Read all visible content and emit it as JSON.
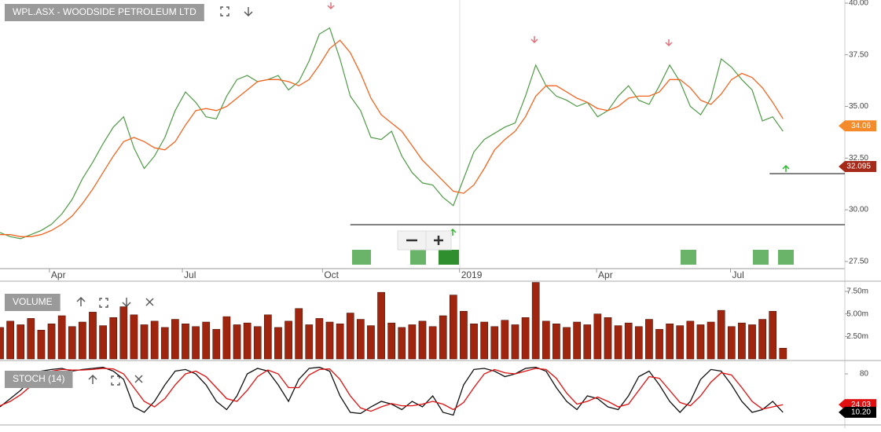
{
  "chart_data": [
    {
      "type": "line",
      "title": "WPL.ASX - WOODSIDE PETROLEUM LTD",
      "x": [
        0,
        1,
        2,
        3,
        4,
        5,
        6,
        7,
        8,
        9,
        10,
        11,
        12,
        13,
        14,
        15,
        16,
        17,
        18,
        19,
        20,
        21,
        22,
        23,
        24,
        25,
        26,
        27,
        28,
        29,
        30,
        31,
        32,
        33,
        34,
        35,
        36,
        37,
        38,
        39,
        40,
        41,
        42,
        43,
        44,
        45,
        46,
        47,
        48,
        49,
        50,
        51,
        52,
        53,
        54,
        55,
        56,
        57,
        58,
        59,
        60,
        61,
        62,
        63,
        64,
        65,
        66,
        67,
        68,
        69,
        70,
        71,
        72,
        73,
        74,
        75,
        76
      ],
      "series": [
        {
          "color": "#4f9a46",
          "values": [
            28.9,
            28.7,
            28.6,
            28.8,
            29.0,
            29.3,
            29.8,
            30.5,
            31.5,
            32.3,
            33.2,
            34.0,
            34.5,
            33.0,
            32.0,
            32.6,
            33.5,
            34.8,
            35.7,
            35.2,
            34.5,
            34.4,
            35.5,
            36.3,
            36.5,
            36.2,
            36.3,
            36.5,
            35.8,
            36.2,
            37.2,
            38.5,
            38.8,
            37.3,
            35.5,
            34.8,
            33.5,
            33.4,
            33.8,
            32.6,
            31.8,
            31.3,
            31.2,
            30.6,
            30.2,
            31.5,
            32.8,
            33.4,
            33.7,
            34.0,
            34.2,
            35.5,
            37.0,
            36.0,
            35.5,
            35.3,
            35.0,
            35.2,
            34.5,
            34.8,
            35.5,
            36.0,
            35.3,
            35.1,
            36.0,
            37.0,
            36.2,
            35.0,
            34.6,
            35.4,
            37.3,
            36.9,
            36.3,
            35.8,
            34.3,
            34.5,
            33.8
          ]
        },
        {
          "color": "#f26522",
          "values": [
            28.8,
            28.8,
            28.7,
            28.7,
            28.8,
            29.0,
            29.3,
            29.7,
            30.3,
            31.0,
            31.8,
            32.6,
            33.3,
            33.5,
            33.3,
            33.0,
            32.9,
            33.3,
            34.1,
            34.8,
            34.9,
            34.8,
            35.0,
            35.4,
            35.8,
            36.2,
            36.3,
            36.3,
            36.2,
            36.0,
            36.3,
            37.0,
            37.8,
            38.2,
            37.6,
            36.6,
            35.4,
            34.6,
            34.2,
            33.8,
            33.1,
            32.4,
            31.9,
            31.4,
            30.9,
            30.8,
            31.2,
            32.0,
            32.9,
            33.4,
            33.8,
            34.5,
            35.5,
            36.0,
            36.0,
            35.7,
            35.4,
            35.2,
            34.9,
            34.8,
            35.0,
            35.4,
            35.5,
            35.5,
            35.7,
            36.3,
            36.3,
            35.9,
            35.3,
            35.1,
            35.6,
            36.3,
            36.6,
            36.4,
            35.9,
            35.2,
            34.4
          ]
        }
      ],
      "xlim": [
        0,
        82
      ],
      "xticks": [
        {
          "value": 4.8,
          "label": "Apr"
        },
        {
          "value": 17.7,
          "label": "Jul"
        },
        {
          "value": 31.3,
          "label": "Oct"
        },
        {
          "value": 44.6,
          "label": "2019"
        },
        {
          "value": 57.9,
          "label": "Apr"
        },
        {
          "value": 70.9,
          "label": "Jul"
        }
      ],
      "ylim": [
        27.23,
        40.15
      ],
      "yticks": [
        {
          "value": 27.5,
          "label": "27.50"
        },
        {
          "value": 30,
          "label": "30.00"
        },
        {
          "value": 32.5,
          "label": "32.50"
        },
        {
          "value": 35,
          "label": "35.00"
        },
        {
          "value": 37.5,
          "label": "37.50"
        },
        {
          "value": 40,
          "label": "40.00"
        }
      ],
      "levels": [
        {
          "value": 29.28,
          "from": 34
        },
        {
          "value": 31.75,
          "from": 74.7
        }
      ],
      "badges": [
        {
          "value": 34.06,
          "color": "#f58a2a"
        },
        {
          "value": 32.095,
          "color": "#a52a1a"
        }
      ]
    },
    {
      "type": "bar",
      "title": "VOLUME",
      "color": "#a0250f",
      "values": [
        3.5,
        4.2,
        3.8,
        4.5,
        3.2,
        3.9,
        4.8,
        3.6,
        4.1,
        5.2,
        3.7,
        4.6,
        5.8,
        4.9,
        3.8,
        4.2,
        3.5,
        4.4,
        3.9,
        3.6,
        4.1,
        3.3,
        4.7,
        3.8,
        4.0,
        3.6,
        4.9,
        3.5,
        4.2,
        5.6,
        3.8,
        4.5,
        4.1,
        3.9,
        5.1,
        4.4,
        3.7,
        7.4,
        4.0,
        3.5,
        3.8,
        4.2,
        3.6,
        4.8,
        7.1,
        5.3,
        3.9,
        4.1,
        3.6,
        4.3,
        3.8,
        4.6,
        8.5,
        4.2,
        3.9,
        3.5,
        4.1,
        3.8,
        5.0,
        4.6,
        3.7,
        4.0,
        3.6,
        4.4,
        3.3,
        3.9,
        3.7,
        4.2,
        3.8,
        4.1,
        5.4,
        3.6,
        4.0,
        3.8,
        4.4,
        5.3,
        1.2
      ],
      "ylim": [
        0,
        8.46
      ],
      "yticks": [
        {
          "value": 2.5,
          "label": "2.50m"
        },
        {
          "value": 5,
          "label": "5.00m"
        },
        {
          "value": 7.5,
          "label": "7.50m"
        }
      ]
    },
    {
      "type": "line",
      "title": "STOCH (14)",
      "series": [
        {
          "color": "#111111",
          "values": [
            20,
            35,
            50,
            70,
            85,
            88,
            90,
            85,
            88,
            90,
            92,
            85,
            70,
            20,
            10,
            30,
            60,
            85,
            88,
            80,
            60,
            30,
            15,
            40,
            80,
            90,
            85,
            60,
            30,
            70,
            90,
            92,
            85,
            40,
            10,
            8,
            20,
            30,
            25,
            15,
            30,
            20,
            40,
            10,
            5,
            60,
            88,
            90,
            85,
            75,
            80,
            90,
            92,
            85,
            55,
            30,
            15,
            40,
            35,
            20,
            15,
            40,
            75,
            85,
            60,
            30,
            10,
            30,
            70,
            88,
            85,
            60,
            30,
            10,
            15,
            30,
            10.2
          ]
        },
        {
          "color": "#e01010",
          "values": [
            22,
            30,
            42,
            58,
            75,
            85,
            88,
            87,
            87,
            88,
            90,
            89,
            80,
            55,
            30,
            20,
            35,
            60,
            80,
            85,
            75,
            55,
            35,
            30,
            50,
            75,
            87,
            80,
            55,
            55,
            78,
            88,
            89,
            70,
            40,
            18,
            12,
            20,
            26,
            22,
            22,
            25,
            30,
            25,
            15,
            28,
            55,
            80,
            88,
            82,
            80,
            85,
            90,
            88,
            72,
            45,
            25,
            30,
            38,
            30,
            20,
            25,
            50,
            75,
            72,
            50,
            28,
            22,
            40,
            65,
            82,
            78,
            55,
            30,
            16,
            20,
            24.03
          ]
        }
      ],
      "ylim": [
        0,
        100
      ],
      "yticks": [
        80
      ],
      "badges": [
        {
          "value": 24.03,
          "color": "#e01010"
        },
        {
          "value": 10.2,
          "label": "10.20",
          "color": "#000000"
        }
      ]
    }
  ]
}
